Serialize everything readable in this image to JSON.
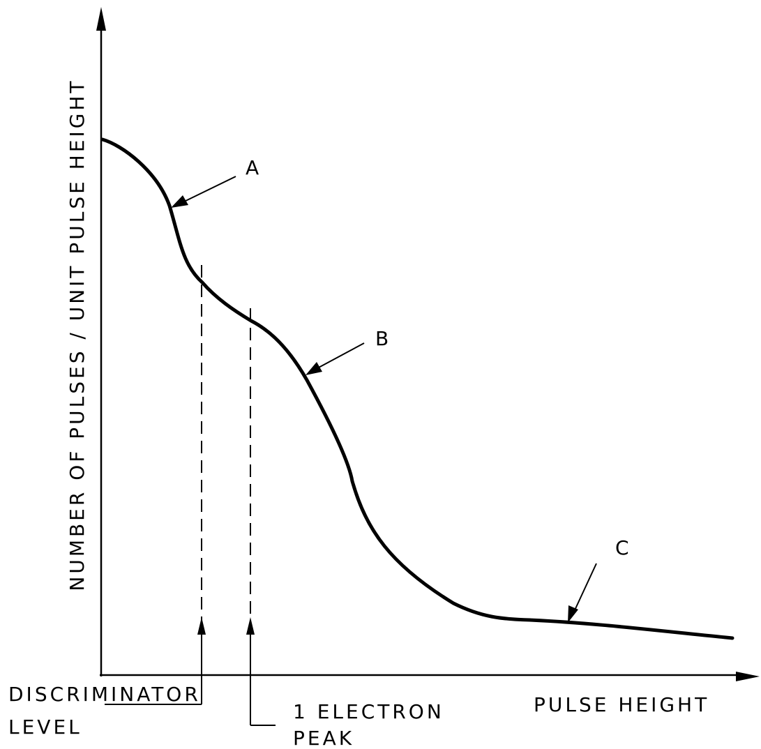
{
  "axes": {
    "y_label": "NUMBER OF PULSES / UNIT PULSE HEIGHT",
    "x_label": "PULSE HEIGHT"
  },
  "callouts": {
    "a": "A",
    "b": "B",
    "c": "C"
  },
  "markers": {
    "discriminator": {
      "line1": "DISCRIMINATOR",
      "line2": "LEVEL"
    },
    "electron_peak": {
      "line1": "1 ELECTRON",
      "line2": "PEAK"
    }
  }
}
